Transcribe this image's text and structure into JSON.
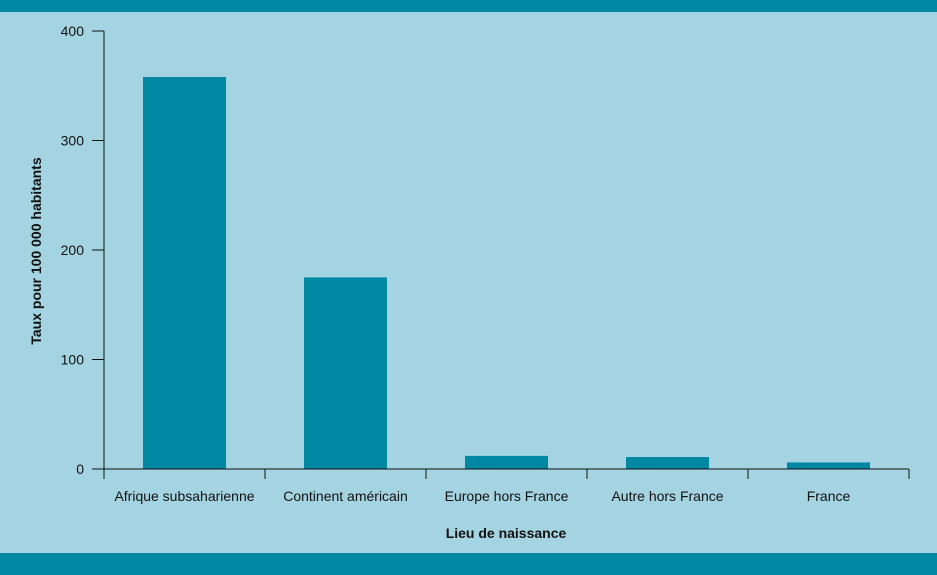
{
  "colors": {
    "background": "#a4d4e1",
    "bar": "#0088a3",
    "band": "#0088a3",
    "axis": "#111111"
  },
  "chart_data": {
    "type": "bar",
    "categories": [
      "Afrique subsaharienne",
      "Continent américain",
      "Europe hors France",
      "Autre hors France",
      "France"
    ],
    "values": [
      358,
      175,
      12,
      11,
      6
    ],
    "xlabel": "Lieu de naissance",
    "ylabel": "Taux pour 100 000 habitants",
    "ylim": [
      0,
      400
    ],
    "yticks": [
      0,
      100,
      200,
      300,
      400
    ],
    "grid": false
  }
}
